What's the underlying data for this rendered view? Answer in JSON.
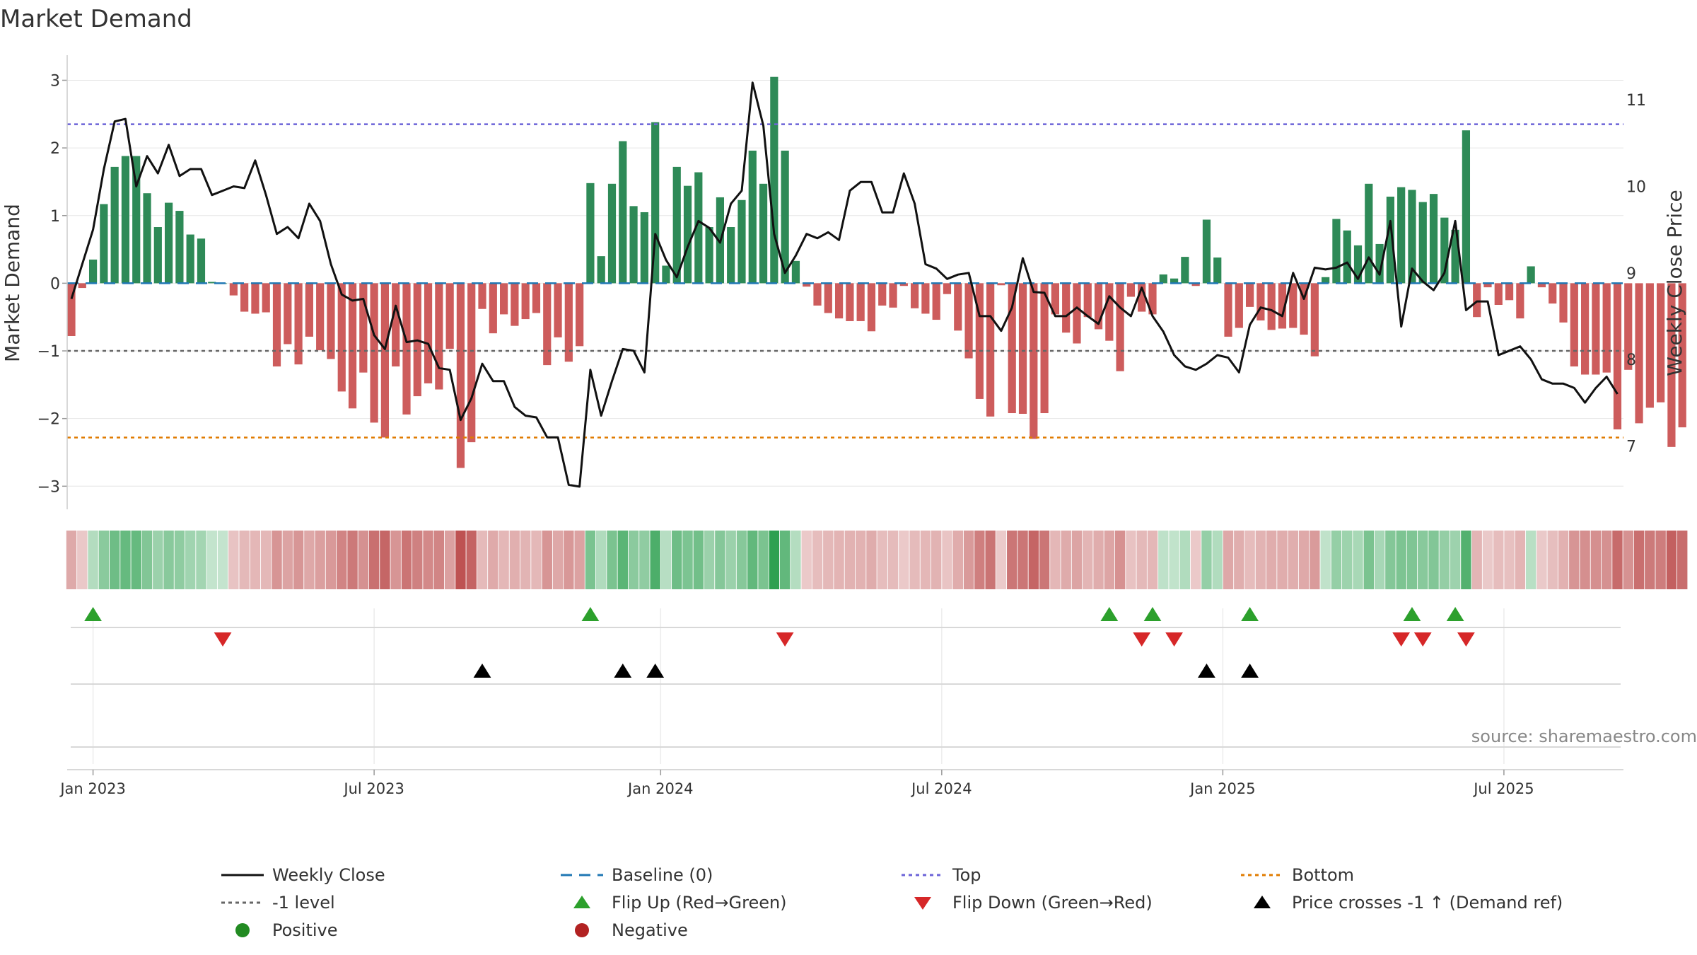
{
  "chart_data": {
    "type": "bar",
    "title": "Market Demand",
    "ylabel": "Market Demand",
    "y2label": "Weekly Close Price",
    "ylim": [
      -3.3,
      3.35
    ],
    "y2lim": [
      6.3,
      11.5
    ],
    "yticks": [
      -3,
      -2,
      -1,
      0,
      1,
      2,
      3
    ],
    "ytick_labels": [
      "−3",
      "−2",
      "−1",
      "0",
      "1",
      "2",
      "3"
    ],
    "y2ticks": [
      7,
      8,
      9,
      10,
      11
    ],
    "y2tick_labels": [
      "7",
      "8",
      "9",
      "10",
      "11"
    ],
    "xticks": [
      {
        "week": 2,
        "label": "Jan 2023"
      },
      {
        "week": 28,
        "label": "Jul 2023"
      },
      {
        "week": 54.5,
        "label": "Jan 2024"
      },
      {
        "week": 80.5,
        "label": "Jul 2024"
      },
      {
        "week": 106.5,
        "label": "Jan 2025"
      },
      {
        "week": 132.5,
        "label": "Jul 2025"
      }
    ],
    "reference_lines": [
      {
        "name": "Top",
        "value": 2.35,
        "color": "#6b63d8"
      },
      {
        "name": "-1 level",
        "value": -1,
        "color": "#666666"
      },
      {
        "name": "Bottom",
        "value": -2.28,
        "color": "#e07b00"
      },
      {
        "name": "Baseline (0)",
        "value": 0,
        "color": "#1f77b4"
      }
    ],
    "series": [
      {
        "name": "Market Demand",
        "values": [
          -0.78,
          -0.07,
          0.35,
          1.17,
          1.72,
          1.88,
          1.88,
          1.33,
          0.83,
          1.19,
          1.07,
          0.72,
          0.66,
          0.02,
          0,
          -0.18,
          -0.42,
          -0.45,
          -0.43,
          -1.23,
          -0.9,
          -1.2,
          -0.79,
          -0.99,
          -1.12,
          -1.6,
          -1.85,
          -1.32,
          -2.06,
          -2.28,
          -1.23,
          -1.94,
          -1.67,
          -1.48,
          -1.57,
          -0.97,
          -2.73,
          -2.35,
          -0.38,
          -0.74,
          -0.46,
          -0.63,
          -0.53,
          -0.44,
          -1.21,
          -0.8,
          -1.16,
          -0.93,
          1.48,
          0.4,
          1.47,
          2.1,
          1.14,
          1.05,
          2.38,
          0.26,
          1.72,
          1.44,
          1.64,
          0.83,
          1.27,
          0.83,
          1.23,
          1.96,
          1.47,
          3.05,
          1.96,
          0.33,
          -0.05,
          -0.33,
          -0.44,
          -0.52,
          -0.56,
          -0.56,
          -0.71,
          -0.33,
          -0.36,
          -0.04,
          -0.37,
          -0.45,
          -0.54,
          -0.16,
          -0.7,
          -1.11,
          -1.71,
          -1.97,
          -0.03,
          -1.92,
          -1.93,
          -2.3,
          -1.92,
          -0.46,
          -0.73,
          -0.89,
          -0.5,
          -0.68,
          -0.85,
          -1.3,
          -0.2,
          -0.42,
          -0.46,
          0.13,
          0.07,
          0.39,
          -0.04,
          0.94,
          0.38,
          -0.79,
          -0.66,
          -0.35,
          -0.55,
          -0.69,
          -0.67,
          -0.66,
          -0.76,
          -1.08,
          0.09,
          0.95,
          0.78,
          0.56,
          1.47,
          0.58,
          1.28,
          1.42,
          1.38,
          1.2,
          1.32,
          0.97,
          0.79,
          2.26,
          -0.5,
          -0.06,
          -0.32,
          -0.25,
          -0.52,
          0.25,
          -0.06,
          -0.3,
          -0.58,
          -1.23,
          -1.35,
          -1.35,
          -1.32,
          -2.16,
          -1.28,
          -2.07,
          -1.84,
          -1.76,
          -2.42,
          -2.13
        ]
      },
      {
        "name": "Weekly Close",
        "axis": "right",
        "values": [
          8.7,
          9.1,
          9.5,
          10.2,
          10.75,
          10.78,
          10.0,
          10.35,
          10.15,
          10.48,
          10.12,
          10.2,
          10.2,
          9.9,
          9.95,
          10.0,
          9.98,
          10.3,
          9.9,
          9.45,
          9.53,
          9.4,
          9.8,
          9.6,
          9.1,
          8.75,
          8.68,
          8.7,
          8.28,
          8.12,
          8.62,
          8.2,
          8.22,
          8.18,
          7.9,
          7.88,
          7.3,
          7.55,
          7.95,
          7.75,
          7.75,
          7.45,
          7.35,
          7.33,
          7.1,
          7.1,
          6.55,
          6.53,
          7.88,
          7.35,
          7.75,
          8.12,
          8.1,
          7.85,
          9.45,
          9.15,
          8.95,
          9.3,
          9.6,
          9.52,
          9.35,
          9.8,
          9.95,
          11.2,
          10.7,
          9.45,
          9.0,
          9.2,
          9.45,
          9.4,
          9.47,
          9.38,
          9.95,
          10.05,
          10.05,
          9.7,
          9.7,
          10.15,
          9.8,
          9.1,
          9.05,
          8.93,
          8.98,
          9.0,
          8.5,
          8.5,
          8.33,
          8.6,
          9.17,
          8.78,
          8.77,
          8.5,
          8.5,
          8.6,
          8.5,
          8.41,
          8.73,
          8.6,
          8.5,
          8.83,
          8.5,
          8.32,
          8.05,
          7.92,
          7.88,
          7.95,
          8.05,
          8.02,
          7.85,
          8.4,
          8.6,
          8.57,
          8.5,
          9.0,
          8.7,
          9.06,
          9.04,
          9.06,
          9.12,
          8.93,
          9.18,
          8.98,
          9.6,
          8.38,
          9.05,
          8.9,
          8.8,
          9.0,
          9.6,
          8.57,
          8.67,
          8.67,
          8.05,
          8.1,
          8.15,
          8.0,
          7.77,
          7.72,
          7.72,
          7.67,
          7.5,
          7.67,
          7.8,
          7.6
        ]
      }
    ],
    "heatmap_strip": {
      "description": "weekly tile colored by demand sign and magnitude"
    },
    "flip_up_weeks": [
      2,
      48,
      96,
      100,
      109,
      124,
      128
    ],
    "flip_down_weeks": [
      14,
      66,
      99,
      102,
      123,
      125,
      129
    ],
    "price_cross_weeks": [
      38,
      51,
      54,
      105,
      109
    ],
    "colors": {
      "positive": "#2e8a57",
      "negative": "#cd5c5c",
      "price": "#111111",
      "flip_up": "#2ca02c",
      "flip_down": "#d62728",
      "cross": "#000000",
      "grid": "#e6e6e6"
    },
    "legend": {
      "position": "bottom",
      "items": [
        {
          "label": "Weekly Close",
          "symbol": "line",
          "color": "#111111"
        },
        {
          "label": "Baseline (0)",
          "symbol": "dash",
          "color": "#1f77b4"
        },
        {
          "label": "Top",
          "symbol": "dot",
          "color": "#6b63d8"
        },
        {
          "label": "Bottom",
          "symbol": "dot",
          "color": "#e07b00"
        },
        {
          "label": "-1 level",
          "symbol": "dot",
          "color": "#666666"
        },
        {
          "label": "Flip Up (Red→Green)",
          "symbol": "tri-up",
          "color": "#2ca02c"
        },
        {
          "label": "Flip Down (Green→Red)",
          "symbol": "tri-down",
          "color": "#d62728"
        },
        {
          "label": "Price crosses -1 ↑ (Demand ref)",
          "symbol": "tri-up",
          "color": "#000000"
        },
        {
          "label": "Positive",
          "symbol": "circle",
          "color": "#228b22"
        },
        {
          "label": "Negative",
          "symbol": "circle",
          "color": "#b22222"
        }
      ]
    },
    "source": "source: sharemaestro.com"
  }
}
